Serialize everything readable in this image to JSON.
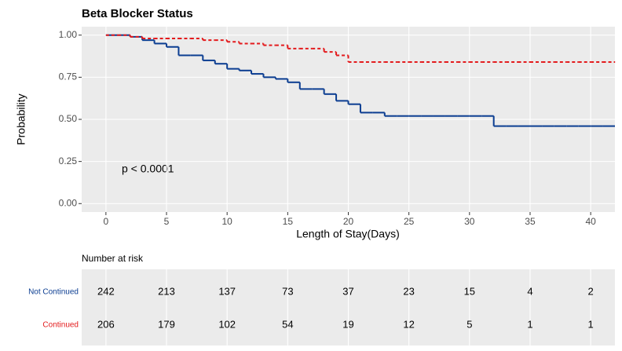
{
  "chart_data": {
    "type": "step",
    "title": "Beta Blocker Status",
    "x_label": "Length of Stay(Days)",
    "y_label": "Probability",
    "annotation": "p < 0.0001",
    "x": [
      0,
      1,
      2,
      3,
      4,
      5,
      6,
      7,
      8,
      9,
      10,
      11,
      12,
      13,
      14,
      15,
      16,
      17,
      18,
      19,
      20,
      21,
      22,
      23,
      24,
      25,
      26,
      27,
      28,
      29,
      30,
      31,
      32,
      33,
      34,
      35,
      36,
      37,
      38,
      39,
      40,
      41,
      42
    ],
    "series": [
      {
        "name": "Not Continued",
        "color": "#0b3d91",
        "dash": false,
        "values": [
          1.0,
          1.0,
          0.99,
          0.97,
          0.95,
          0.93,
          0.88,
          0.88,
          0.85,
          0.83,
          0.8,
          0.79,
          0.77,
          0.75,
          0.74,
          0.72,
          0.68,
          0.68,
          0.65,
          0.61,
          0.59,
          0.54,
          0.54,
          0.52,
          0.52,
          0.52,
          0.52,
          0.52,
          0.52,
          0.52,
          0.52,
          0.52,
          0.46,
          0.46,
          0.46,
          0.46,
          0.46,
          0.46,
          0.46,
          0.46,
          0.46,
          0.46,
          0.46
        ]
      },
      {
        "name": "Continued",
        "color": "#e31a1c",
        "dash": true,
        "values": [
          1.0,
          1.0,
          0.99,
          0.98,
          0.98,
          0.98,
          0.98,
          0.98,
          0.97,
          0.97,
          0.96,
          0.95,
          0.95,
          0.94,
          0.94,
          0.92,
          0.92,
          0.92,
          0.9,
          0.88,
          0.84,
          0.84,
          0.84,
          0.84,
          0.84,
          0.84,
          0.84,
          0.84,
          0.84,
          0.84,
          0.84,
          0.84,
          0.84,
          0.84,
          0.84,
          0.84,
          0.84,
          0.84,
          0.84,
          0.84,
          0.84,
          0.84,
          0.84
        ]
      }
    ],
    "xlim": [
      -2,
      42
    ],
    "ylim": [
      -0.05,
      1.05
    ],
    "xticks": [
      0,
      5,
      10,
      15,
      20,
      25,
      30,
      35,
      40
    ],
    "yticks": [
      {
        "value": 0,
        "label": "0.00"
      },
      {
        "value": 0.25,
        "label": "0.25"
      },
      {
        "value": 0.5,
        "label": "0.50"
      },
      {
        "value": 0.75,
        "label": "0.75"
      },
      {
        "value": 1,
        "label": "1.00"
      }
    ],
    "grid": true,
    "risk_table": {
      "title": "Number at risk",
      "rows": [
        {
          "name": "Not Continued",
          "color": "#0b3d91",
          "values": [
            242,
            213,
            137,
            73,
            37,
            23,
            15,
            4,
            2
          ]
        },
        {
          "name": "Continued",
          "color": "#e31a1c",
          "values": [
            206,
            179,
            102,
            54,
            19,
            12,
            5,
            1,
            1
          ]
        }
      ]
    }
  }
}
